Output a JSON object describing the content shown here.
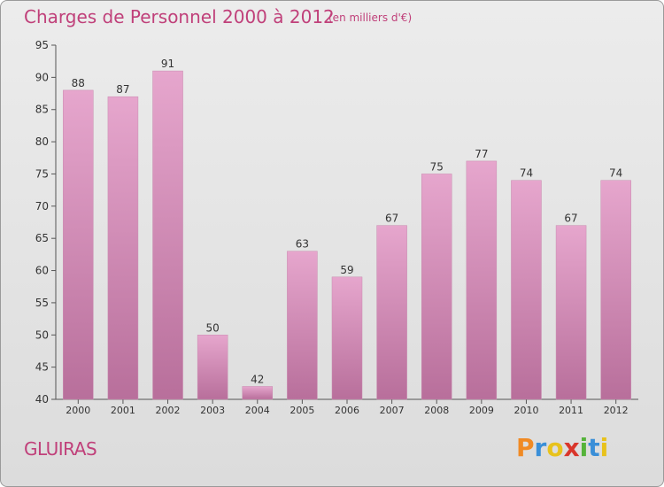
{
  "chart_data": {
    "type": "bar",
    "title": "Charges de Personnel 2000 à 2012",
    "subtitle": "(en milliers d'€)",
    "categories": [
      "2000",
      "2001",
      "2002",
      "2003",
      "2004",
      "2005",
      "2006",
      "2007",
      "2008",
      "2009",
      "2010",
      "2011",
      "2012"
    ],
    "values": [
      88,
      87,
      91,
      50,
      42,
      63,
      59,
      67,
      75,
      77,
      74,
      67,
      74
    ],
    "ylim": [
      40,
      95
    ],
    "yticks": [
      40,
      45,
      50,
      55,
      60,
      65,
      70,
      75,
      80,
      85,
      90,
      95
    ],
    "grid": false,
    "bar_color_top": "#e6a6cd",
    "bar_color_bottom": "#b86f9b"
  },
  "footer": {
    "town": "GLUIRAS",
    "logo": "Proxiti",
    "logo_colors": [
      "#f08a24",
      "#3a8fd8",
      "#e8c21c",
      "#d9362b",
      "#55b33a",
      "#3a8fd8",
      "#e8c21c"
    ]
  }
}
